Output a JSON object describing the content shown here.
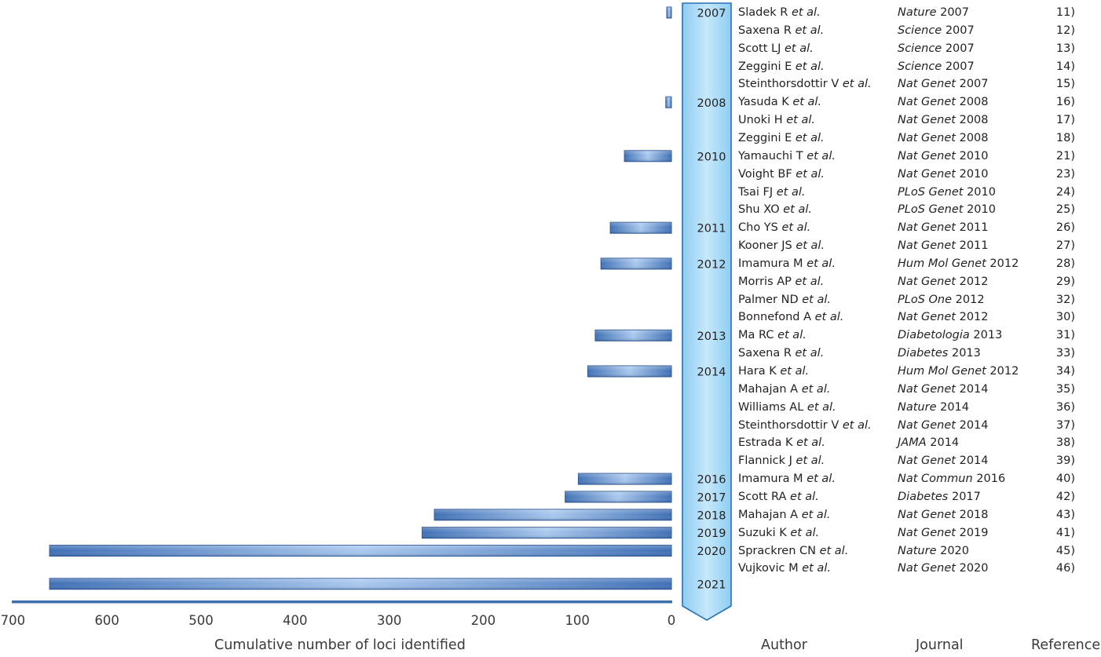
{
  "chart_data": {
    "type": "bar",
    "orientation": "horizontal",
    "xlabel": "Cumulative number of loci identified",
    "xlim": [
      0,
      700
    ],
    "x_reversed": true,
    "xticks": [
      "700",
      "600",
      "500",
      "400",
      "300",
      "200",
      "100",
      "0"
    ],
    "xtick_values": [
      700,
      600,
      500,
      400,
      300,
      200,
      100,
      0
    ],
    "categories": [
      "2007",
      "2008",
      "2010",
      "2011",
      "2012",
      "2013",
      "2014",
      "2016",
      "2017",
      "2018",
      "2019",
      "2020",
      "2021"
    ],
    "values": [
      5,
      6,
      50,
      65,
      75,
      81,
      89,
      99,
      113,
      252,
      265,
      661,
      661
    ],
    "row_index": [
      0,
      5,
      8,
      12,
      14,
      18,
      20,
      26,
      27,
      28,
      29,
      30,
      32
    ],
    "colors": {
      "bar": "#3e6fb5",
      "bar_highlight": "#a9c8ee",
      "timeline": "#9fd6f5",
      "timeline_border": "#2a6fb5",
      "axis": "#3d6eb0"
    }
  },
  "columns": {
    "author": "Author",
    "journal": "Journal",
    "reference": "Reference"
  },
  "entries": [
    {
      "author": "Sladek R",
      "etal": "et al.",
      "journal": "Nature",
      "year": "2007",
      "ref": "11)"
    },
    {
      "author": "Saxena R",
      "etal": "et al.",
      "journal": "Science",
      "year": "2007",
      "ref": "12)"
    },
    {
      "author": "Scott LJ",
      "etal": "et al.",
      "journal": "Science",
      "year": "2007",
      "ref": "13)"
    },
    {
      "author": "Zeggini E",
      "etal": "et al.",
      "journal": "Science",
      "year": "2007",
      "ref": "14)"
    },
    {
      "author": "Steinthorsdottir V",
      "etal": "et al.",
      "journal": "Nat Genet",
      "year": "2007",
      "ref": "15)"
    },
    {
      "author": "Yasuda K",
      "etal": "et al.",
      "journal": "Nat Genet",
      "year": "2008",
      "ref": "16)"
    },
    {
      "author": "Unoki H",
      "etal": "et al.",
      "journal": "Nat Genet",
      "year": "2008",
      "ref": "17)"
    },
    {
      "author": "Zeggini E",
      "etal": "et al.",
      "journal": "Nat Genet",
      "year": " 2008",
      "ref": "18)"
    },
    {
      "author": "Yamauchi T",
      "etal": "et al.",
      "journal": "Nat Genet",
      "year": "2010",
      "ref": "21)"
    },
    {
      "author": "Voight BF",
      "etal": "et al.",
      "journal": "Nat Genet",
      "year": "2010",
      "ref": "23)"
    },
    {
      "author": "Tsai FJ",
      "etal": "et al.",
      "journal": "PLoS Genet",
      "year": "2010",
      "ref": "24)"
    },
    {
      "author": "Shu XO",
      "etal": "et al.",
      "journal": "PLoS Genet",
      "year": "2010",
      "ref": "25)"
    },
    {
      "author": "Cho YS",
      "etal": "et al.",
      "journal": "Nat Genet",
      "year": "2011",
      "ref": "26)"
    },
    {
      "author": "Kooner JS",
      "etal": "et al.",
      "journal": "Nat Genet",
      "year": "2011",
      "ref": "27)"
    },
    {
      "author": "Imamura M",
      "etal": "et al.",
      "journal": "Hum Mol Genet",
      "year": "2012",
      "ref": "28)"
    },
    {
      "author": "Morris AP",
      "etal": "et al.",
      "journal": "Nat Genet",
      "year": "2012",
      "ref": "29)"
    },
    {
      "author": "Palmer ND",
      "etal": "et al.",
      "journal": "PLoS One",
      "year": "2012",
      "ref": "32)"
    },
    {
      "author": "Bonnefond A",
      "etal": "et al.",
      "journal": "Nat Genet",
      "year": "2012",
      "ref": "30)"
    },
    {
      "author": "Ma RC",
      "etal": "et al.",
      "journal": "Diabetologia",
      "year": "2013",
      "ref": "31)"
    },
    {
      "author": "Saxena R",
      "etal": "et al.",
      "journal": "Diabetes",
      "year": "2013",
      "ref": "33)"
    },
    {
      "author": "Hara K",
      "etal": "et al.",
      "journal": "Hum Mol Genet",
      "year": "2012",
      "ref": "34)"
    },
    {
      "author": "Mahajan A",
      "etal": "et al.",
      "journal": "Nat Genet",
      "year": "2014",
      "ref": "35)"
    },
    {
      "author": "Williams AL",
      "etal": "et al.",
      "journal": "Nature",
      "year": "2014",
      "ref": "36)"
    },
    {
      "author": "Steinthorsdottir V",
      "etal": "et al.",
      "journal": "Nat Genet",
      "year": "2014",
      "ref": "37)"
    },
    {
      "author": "Estrada K",
      "etal": "et al.",
      "journal": "JAMA",
      "year": "2014",
      "ref": "38)"
    },
    {
      "author": "Flannick J",
      "etal": "et al.",
      "journal": "Nat Genet",
      "year": "2014",
      "ref": "39)"
    },
    {
      "author": "Imamura M",
      "etal": "et al.",
      "journal": "Nat Commun",
      "year": "2016",
      "ref": "40)"
    },
    {
      "author": "Scott RA",
      "etal": "et al.",
      "journal": "Diabetes",
      "year": "2017",
      "ref": "42)"
    },
    {
      "author": "Mahajan A",
      "etal": "et al.",
      "journal": "Nat Genet",
      "year": "2018",
      "ref": "43)"
    },
    {
      "author": "Suzuki K",
      "etal": "et al.",
      "journal": "Nat Genet",
      "year": "2019",
      "ref": "41)"
    },
    {
      "author": "Sprackren CN",
      "etal": "et al.",
      "journal": "Nature",
      "year": "2020",
      "ref": "45)"
    },
    {
      "author": "Vujkovic M",
      "etal": "et al.",
      "journal": "Nat Genet",
      "year": "2020",
      "ref": "46)"
    }
  ]
}
